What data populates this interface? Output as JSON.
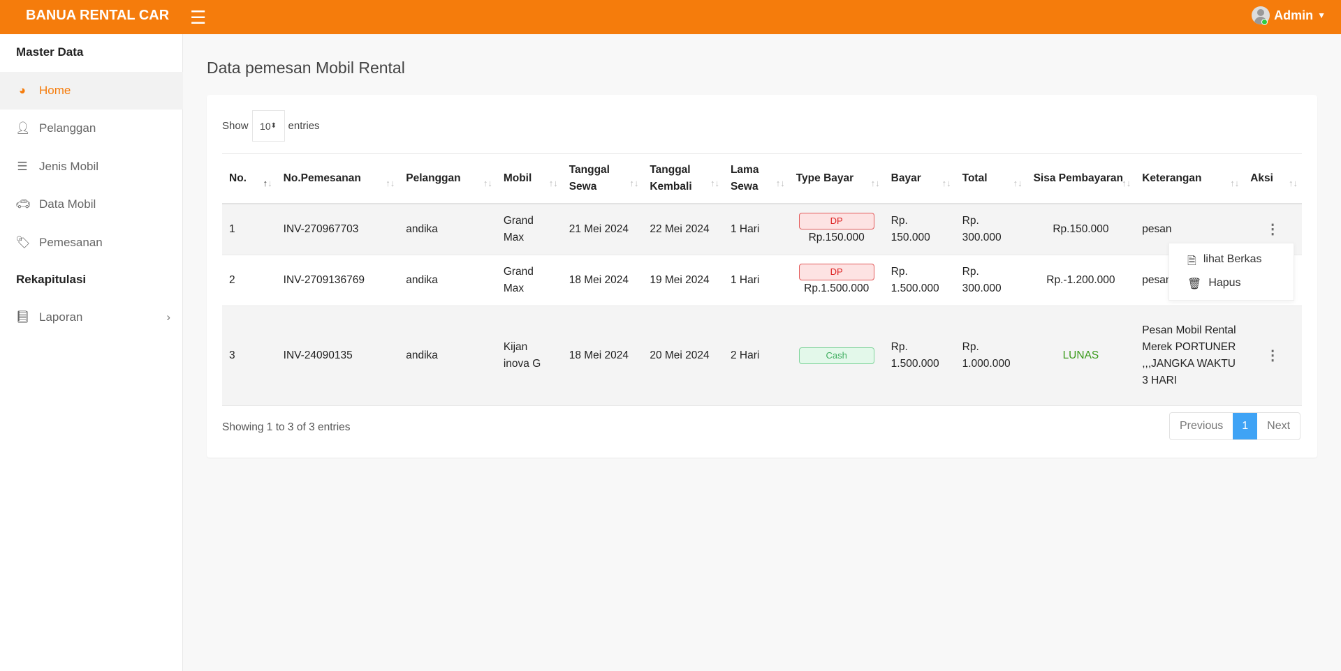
{
  "header": {
    "brand": "BANUA RENTAL CAR",
    "user": "Admin"
  },
  "sidebar": {
    "sections": [
      "Master Data",
      "Rekapitulasi"
    ],
    "items": [
      {
        "label": "Home",
        "icon": "dashboard-icon",
        "active": true
      },
      {
        "label": "Pelanggan",
        "icon": "user-icon"
      },
      {
        "label": "Jenis Mobil",
        "icon": "list-icon"
      },
      {
        "label": "Data Mobil",
        "icon": "car-icon"
      },
      {
        "label": "Pemesanan",
        "icon": "tag-icon"
      },
      {
        "label": "Laporan",
        "icon": "book-icon"
      }
    ]
  },
  "page": {
    "title": "Data pemesan Mobil Rental"
  },
  "table_controls": {
    "show": "Show",
    "entries_value": "10",
    "entries": "entries"
  },
  "table": {
    "columns": [
      "No.",
      "No.Pemesanan",
      "Pelanggan",
      "Mobil",
      "Tanggal Sewa",
      "Tanggal Kembali",
      "Lama Sewa",
      "Type Bayar",
      "Bayar",
      "Total",
      "Sisa Pembayaran",
      "Keterangan",
      "Aksi"
    ],
    "rows": [
      {
        "no": "1",
        "inv": "INV-270967703",
        "pelanggan": "andika",
        "mobil": "Grand Max",
        "sewa": "21 Mei 2024",
        "kembali": "22 Mei 2024",
        "lama": "1 Hari",
        "type": "DP",
        "type_amount": "Rp.150.000",
        "bayar": "Rp. 150.000",
        "total": "Rp. 300.000",
        "sisa": "Rp.150.000",
        "ket": "pesan"
      },
      {
        "no": "2",
        "inv": "INV-2709136769",
        "pelanggan": "andika",
        "mobil": "Grand Max",
        "sewa": "18 Mei 2024",
        "kembali": "19 Mei 2024",
        "lama": "1 Hari",
        "type": "DP",
        "type_amount": "Rp.1.500.000",
        "bayar": "Rp. 1.500.000",
        "total": "Rp. 300.000",
        "sisa": "Rp.-1.200.000",
        "ket": "pesan"
      },
      {
        "no": "3",
        "inv": "INV-24090135",
        "pelanggan": "andika",
        "mobil": "Kijan inova G",
        "sewa": "18 Mei 2024",
        "kembali": "20 Mei 2024",
        "lama": "2 Hari",
        "type": "Cash",
        "type_amount": "",
        "bayar": "Rp. 1.500.000",
        "total": "Rp. 1.000.000",
        "sisa": "LUNAS",
        "ket": "Pesan Mobil Rental Merek PORTUNER ,,,JANGKA WAKTU 3 HARI"
      }
    ]
  },
  "action_menu": {
    "items": [
      "lihat Berkas",
      "Hapus"
    ]
  },
  "footer": {
    "info": "Showing 1 to 3 of 3 entries",
    "previous": "Previous",
    "page": "1",
    "next": "Next"
  },
  "colors": {
    "brand": "#f57c0c",
    "dp": "#d22222",
    "cash": "#3fae5f",
    "lunas": "#3a9a1a",
    "page_active": "#3fa3f5"
  }
}
